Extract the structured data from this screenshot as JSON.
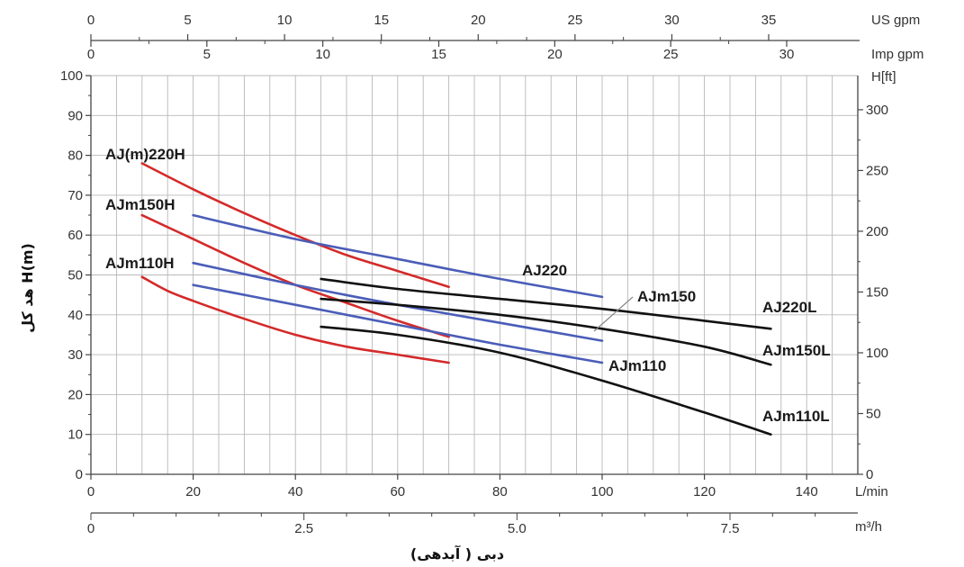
{
  "chart_data": {
    "type": "line",
    "y_axis_left": {
      "label": "H(m) هد کل",
      "ticks": [
        0,
        10,
        20,
        30,
        40,
        50,
        60,
        70,
        80,
        90,
        100
      ],
      "range": [
        0,
        100
      ]
    },
    "y_axis_right": {
      "unit": "H[ft]",
      "ticks": [
        0,
        50,
        100,
        150,
        200,
        250,
        300
      ]
    },
    "x_axis_main": {
      "unit": "L/min",
      "ticks": [
        0,
        20,
        40,
        60,
        80,
        100,
        120,
        140
      ],
      "range": [
        0,
        150
      ]
    },
    "x_axis_m3h": {
      "unit": "m³/h",
      "tick_labels": [
        "0",
        "2.5",
        "5.0",
        "7.5"
      ],
      "tick_values": [
        0,
        2.5,
        5.0,
        7.5
      ]
    },
    "x_axis_us_gpm": {
      "unit": "US gpm",
      "ticks": [
        0,
        5,
        10,
        15,
        20,
        25,
        30,
        35
      ]
    },
    "x_axis_imp_gpm": {
      "unit": "Imp gpm",
      "ticks": [
        0,
        5,
        10,
        15,
        20,
        25,
        30
      ]
    },
    "x_title": "دبی ( آبدهی)",
    "grid": true,
    "series": [
      {
        "name": "AJ(m)220H",
        "color": "#d42a2a",
        "x": [
          10,
          20,
          30,
          40,
          50,
          60,
          70
        ],
        "y": [
          78,
          71.5,
          65.5,
          60,
          55,
          51,
          47
        ]
      },
      {
        "name": "AJm150H",
        "color": "#d42a2a",
        "x": [
          10,
          20,
          30,
          40,
          50,
          60,
          70
        ],
        "y": [
          65,
          59,
          53,
          47.5,
          43,
          38.5,
          34.5
        ]
      },
      {
        "name": "AJm110H",
        "color": "#d42a2a",
        "x": [
          10,
          15,
          20,
          30,
          40,
          50,
          60,
          70
        ],
        "y": [
          49.5,
          46,
          43.5,
          39,
          35,
          32,
          30,
          28
        ]
      },
      {
        "name": "AJ220",
        "color": "#4a5db8",
        "x": [
          20,
          40,
          60,
          80,
          100
        ],
        "y": [
          65,
          59,
          54,
          49,
          44.5
        ]
      },
      {
        "name": "AJm150",
        "color": "#4a5db8",
        "x": [
          20,
          40,
          60,
          80,
          100
        ],
        "y": [
          53,
          47.5,
          42.5,
          38,
          33.5
        ]
      },
      {
        "name": "AJm110",
        "color": "#4a5db8",
        "x": [
          20,
          40,
          60,
          80,
          100
        ],
        "y": [
          47.5,
          42.5,
          37.5,
          32.5,
          28
        ]
      },
      {
        "name": "AJ220L",
        "color": "#111111",
        "x": [
          45,
          60,
          80,
          100,
          120,
          133
        ],
        "y": [
          49,
          46.5,
          44,
          41.5,
          38.5,
          36.5
        ]
      },
      {
        "name": "AJm150L",
        "color": "#111111",
        "x": [
          45,
          60,
          80,
          100,
          120,
          133
        ],
        "y": [
          44,
          42.5,
          40,
          36.5,
          32,
          27.5
        ]
      },
      {
        "name": "AJm110L",
        "color": "#111111",
        "x": [
          45,
          60,
          80,
          100,
          120,
          133
        ],
        "y": [
          37,
          35,
          30.5,
          23.5,
          15.5,
          10
        ]
      }
    ]
  }
}
